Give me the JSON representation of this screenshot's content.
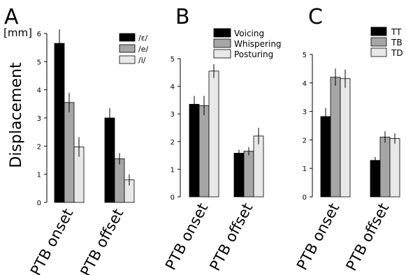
{
  "chart_data": [
    {
      "type": "bar",
      "panel_label": "A",
      "ylabel": "Displacement",
      "unit_label": "[mm]",
      "ylim": [
        0,
        6
      ],
      "yticks": [
        0,
        1,
        2,
        3,
        4,
        5,
        6
      ],
      "categories": [
        "PTB onset",
        "PTB offset"
      ],
      "legend_position": "top-right",
      "grid": false,
      "series": [
        {
          "name": "/ɛ/",
          "color": "#000000",
          "values": [
            5.65,
            3.0
          ],
          "errors": [
            0.5,
            0.35
          ]
        },
        {
          "name": "/e/",
          "color": "#a6a6a6",
          "values": [
            3.55,
            1.55
          ],
          "errors": [
            0.35,
            0.2
          ]
        },
        {
          "name": "/i/",
          "color": "#e8e8e8",
          "values": [
            1.97,
            0.8
          ],
          "errors": [
            0.35,
            0.2
          ]
        }
      ]
    },
    {
      "type": "bar",
      "panel_label": "B",
      "ylim": [
        0,
        5
      ],
      "yticks": [
        0,
        1,
        2,
        3,
        4,
        5
      ],
      "categories": [
        "PTB onset",
        "PTB offset"
      ],
      "legend_position": "top-right",
      "grid": false,
      "series": [
        {
          "name": "Voicing",
          "color": "#000000",
          "values": [
            3.35,
            1.58
          ],
          "errors": [
            0.3,
            0.12
          ]
        },
        {
          "name": "Whispering",
          "color": "#a6a6a6",
          "values": [
            3.3,
            1.65
          ],
          "errors": [
            0.35,
            0.15
          ]
        },
        {
          "name": "Posturing",
          "color": "#e8e8e8",
          "values": [
            4.55,
            2.2
          ],
          "errors": [
            0.25,
            0.3
          ]
        }
      ]
    },
    {
      "type": "bar",
      "panel_label": "C",
      "ylim": [
        0,
        5
      ],
      "yticks": [
        0,
        1,
        2,
        3,
        4,
        5
      ],
      "categories": [
        "PTB onset",
        "PTB offset"
      ],
      "legend_position": "top-right",
      "grid": false,
      "series": [
        {
          "name": "TT",
          "color": "#000000",
          "values": [
            2.82,
            1.28
          ],
          "errors": [
            0.3,
            0.12
          ]
        },
        {
          "name": "TB",
          "color": "#a6a6a6",
          "values": [
            4.2,
            2.1
          ],
          "errors": [
            0.3,
            0.2
          ]
        },
        {
          "name": "TD",
          "color": "#e8e8e8",
          "values": [
            4.15,
            2.05
          ],
          "errors": [
            0.32,
            0.18
          ]
        }
      ]
    }
  ]
}
